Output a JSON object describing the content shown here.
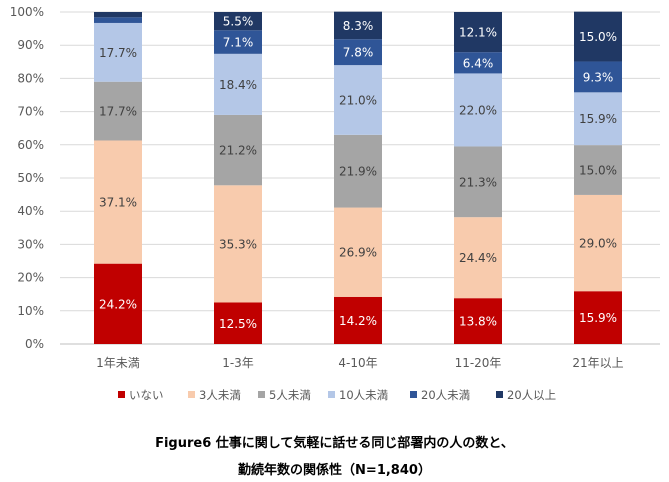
{
  "chart_data": {
    "type": "bar",
    "stacked": true,
    "categories": [
      "1年未満",
      "1-3年",
      "4-10年",
      "11-20年",
      "21年以上"
    ],
    "series": [
      {
        "name": "いない",
        "color": "#c00000",
        "values": [
          24.2,
          12.5,
          14.2,
          13.8,
          15.9
        ]
      },
      {
        "name": "3人未満",
        "color": "#f8cbad",
        "values": [
          37.1,
          35.3,
          26.9,
          24.4,
          29.0
        ]
      },
      {
        "name": "5人未満",
        "color": "#a5a5a5",
        "values": [
          17.7,
          21.2,
          21.9,
          21.3,
          15.0
        ]
      },
      {
        "name": "10人未満",
        "color": "#b4c7e7",
        "values": [
          17.7,
          18.4,
          21.0,
          22.0,
          15.9
        ]
      },
      {
        "name": "20人未満",
        "color": "#2f5597",
        "values": [
          1.7,
          7.1,
          7.8,
          6.4,
          9.3
        ]
      },
      {
        "name": "20人以上",
        "color": "#203864",
        "values": [
          1.6,
          5.5,
          8.3,
          12.1,
          15.0
        ]
      }
    ],
    "data_labels": [
      [
        "24.2%",
        "12.5%",
        "14.2%",
        "13.8%",
        "15.9%"
      ],
      [
        "37.1%",
        "35.3%",
        "26.9%",
        "24.4%",
        "29.0%"
      ],
      [
        "17.7%",
        "21.2%",
        "21.9%",
        "21.3%",
        "15.0%"
      ],
      [
        "17.7%",
        "18.4%",
        "21.0%",
        "22.0%",
        "15.9%"
      ],
      [
        "",
        "7.1%",
        "7.8%",
        "6.4%",
        "9.3%"
      ],
      [
        "",
        "5.5%",
        "8.3%",
        "12.1%",
        "15.0%"
      ]
    ],
    "yticks": [
      "0%",
      "10%",
      "20%",
      "30%",
      "40%",
      "50%",
      "60%",
      "70%",
      "80%",
      "90%",
      "100%"
    ],
    "ylim": [
      0,
      100
    ],
    "grid": true,
    "legend_position": "bottom",
    "title_line1": "Figure6  仕事に関して気軽に話せる同じ部署内の人の数と、",
    "title_line2": "勤続年数の関係性（N=1,840）"
  }
}
